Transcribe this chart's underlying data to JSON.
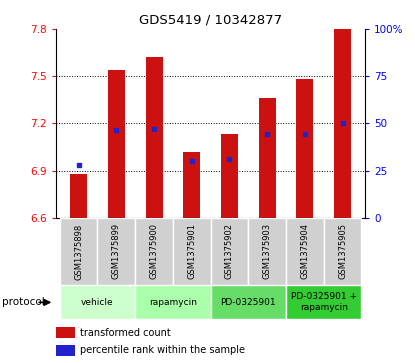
{
  "title": "GDS5419 / 10342877",
  "samples": [
    "GSM1375898",
    "GSM1375899",
    "GSM1375900",
    "GSM1375901",
    "GSM1375902",
    "GSM1375903",
    "GSM1375904",
    "GSM1375905"
  ],
  "bar_tops": [
    6.88,
    7.54,
    7.62,
    7.02,
    7.13,
    7.36,
    7.48,
    7.8
  ],
  "bar_base": 6.6,
  "blue_values": [
    6.935,
    7.16,
    7.165,
    6.96,
    6.975,
    7.13,
    7.135,
    7.2
  ],
  "ylim": [
    6.6,
    7.8
  ],
  "right_ylim": [
    0,
    100
  ],
  "yticks_left": [
    6.6,
    6.9,
    7.2,
    7.5,
    7.8
  ],
  "yticks_right": [
    0,
    25,
    50,
    75,
    100
  ],
  "bar_color": "#cc1111",
  "blue_color": "#2222cc",
  "grid_color": "#333333",
  "proto_labels": [
    "vehicle",
    "rapamycin",
    "PD-0325901",
    "PD-0325901 +\nrapamycin"
  ],
  "proto_colors": [
    "#ccffcc",
    "#aaffaa",
    "#66dd66",
    "#33cc33"
  ],
  "proto_ranges": [
    [
      0,
      2
    ],
    [
      2,
      4
    ],
    [
      4,
      6
    ],
    [
      6,
      8
    ]
  ],
  "legend_red": "transformed count",
  "legend_blue": "percentile rank within the sample",
  "protocol_label": "protocol",
  "bar_width": 0.45,
  "sample_box_color": "#d0d0d0"
}
